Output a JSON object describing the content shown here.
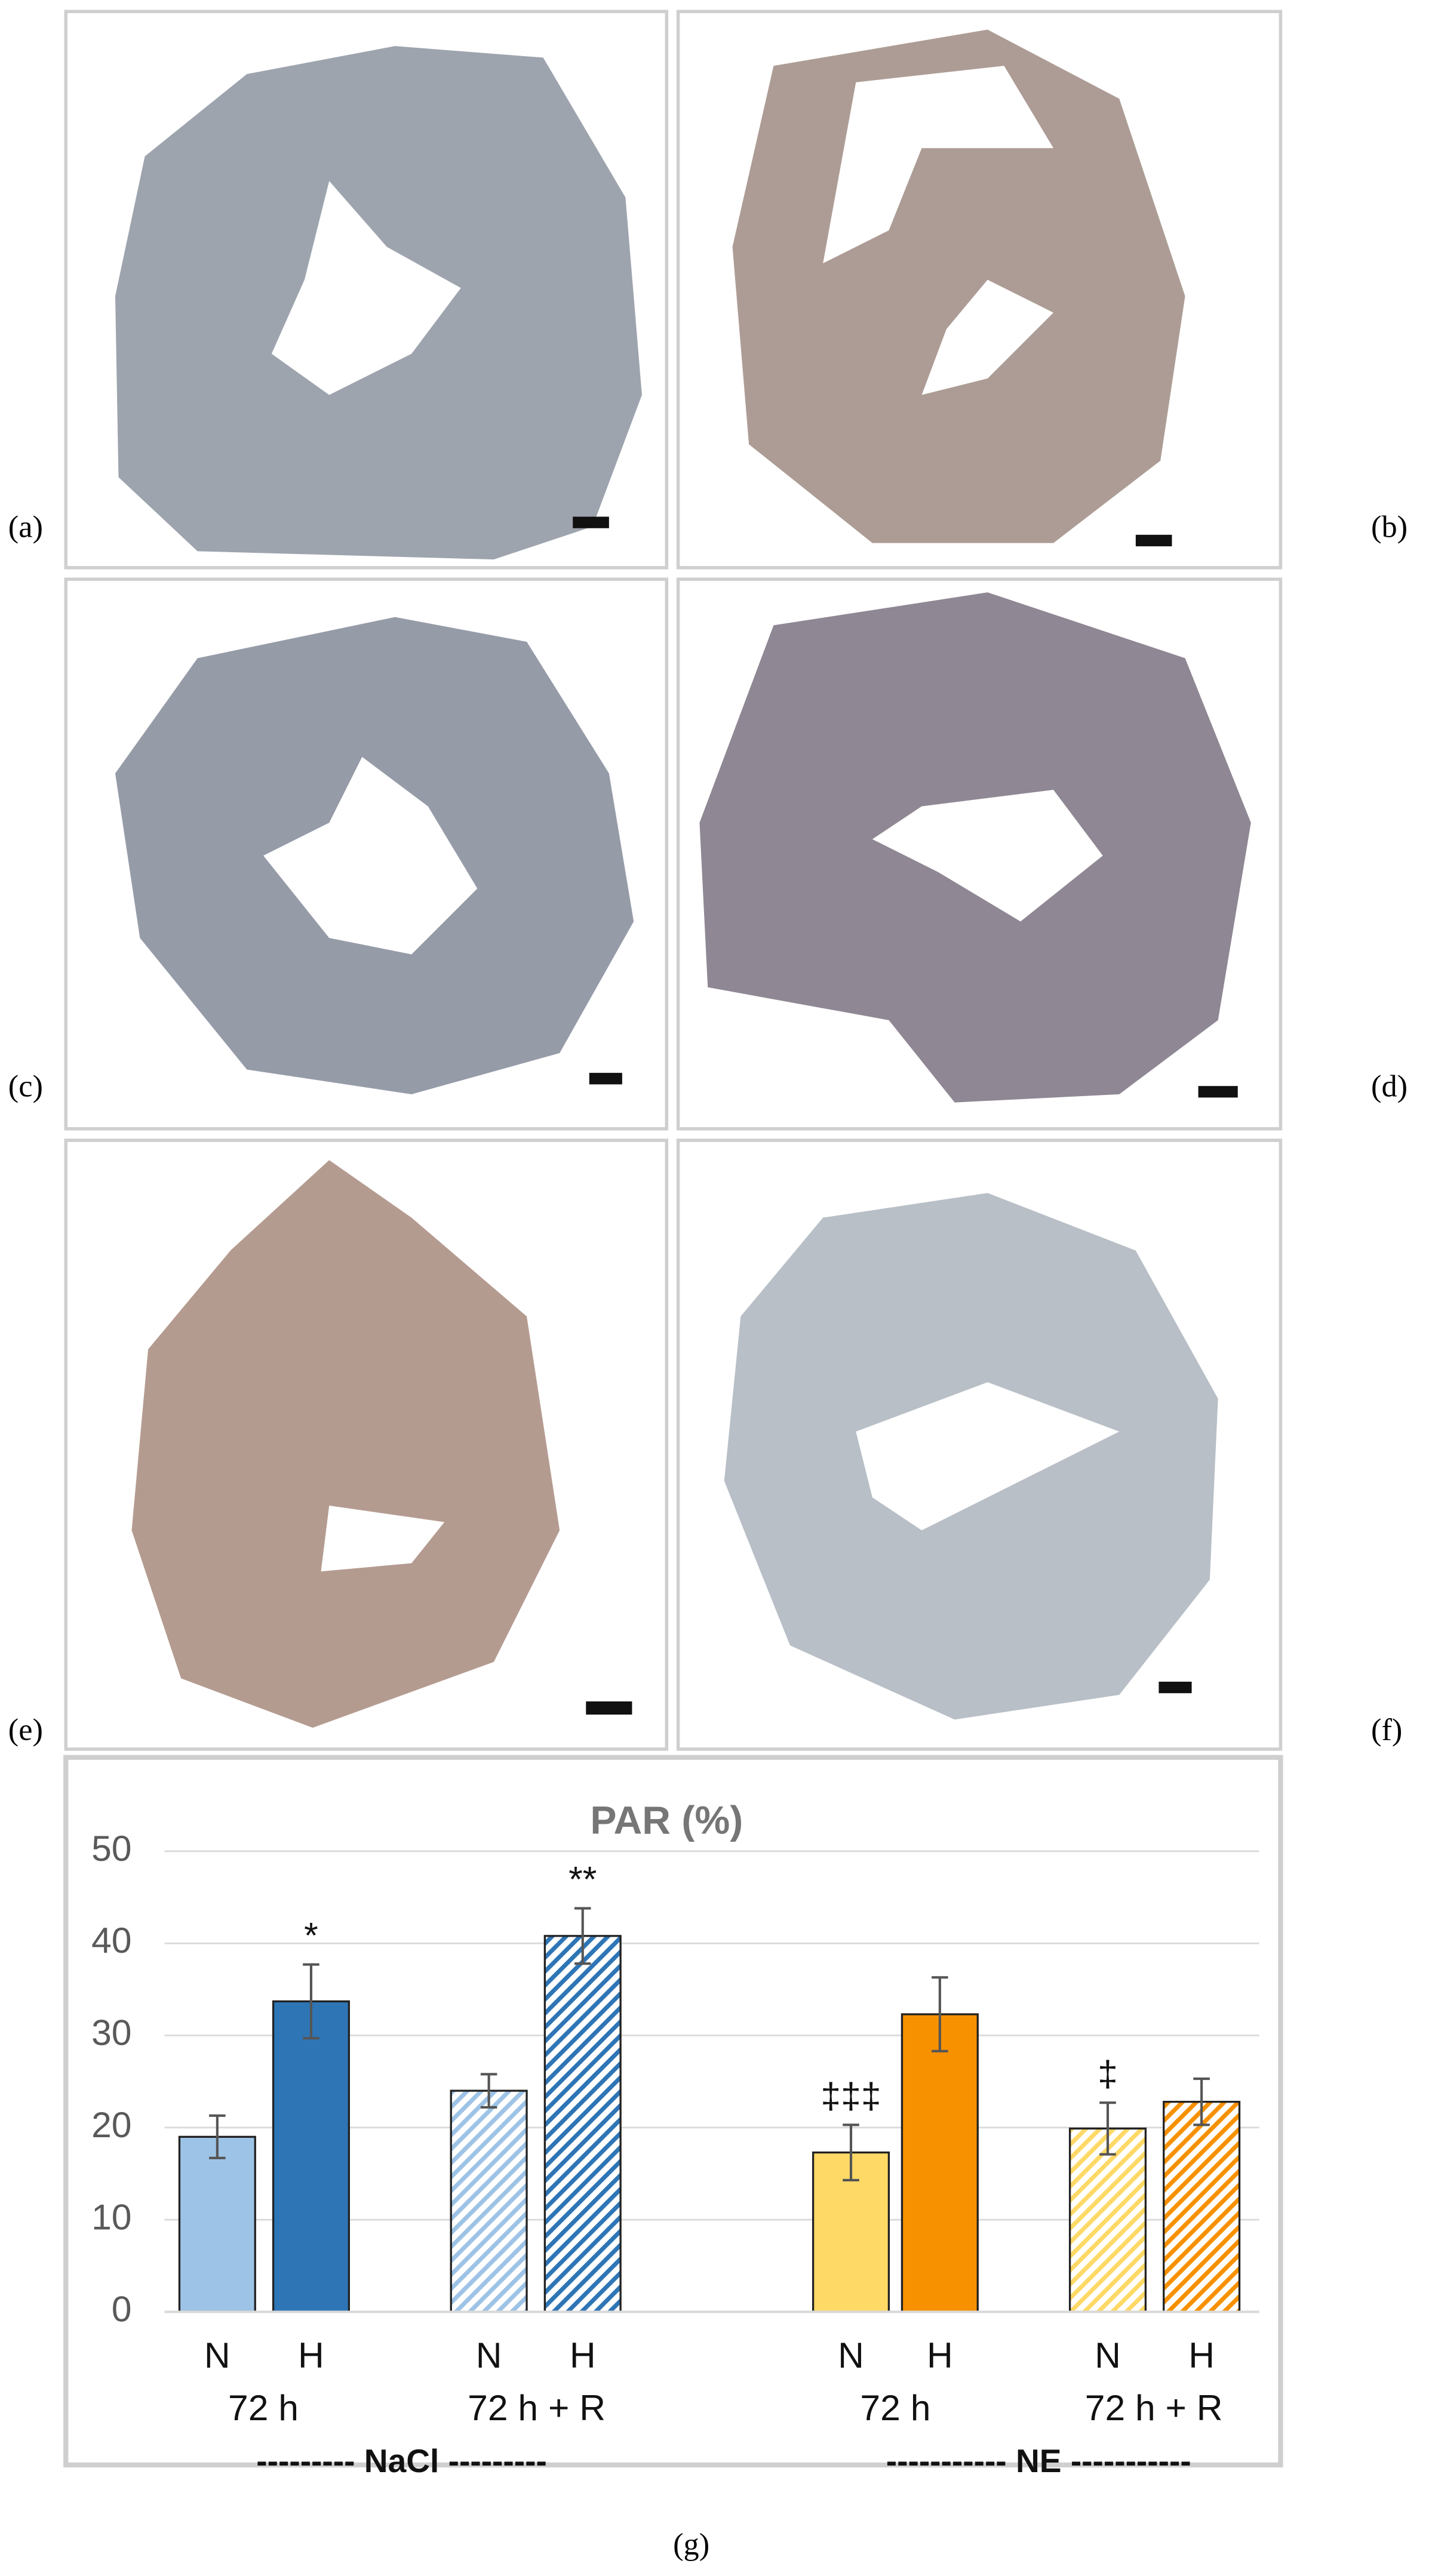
{
  "panel_labels": [
    "(a)",
    "(b)",
    "(c)",
    "(d)",
    "(e)",
    "(f)",
    "(g)"
  ],
  "chart_data": {
    "type": "bar",
    "title": "PAR (%)",
    "categories": [
      "N",
      "H",
      "N",
      "H",
      "N",
      "H",
      "N",
      "H"
    ],
    "values": [
      19,
      33.7,
      24,
      40.8,
      17.3,
      32.3,
      19.9,
      22.8
    ],
    "errors": [
      2.3,
      4,
      1.8,
      3,
      3,
      4,
      2.8,
      2.5
    ],
    "colors": [
      "#9dc3e6",
      "#2e75b6",
      "#9dc3e6",
      "#2e75b6",
      "#ffd966",
      "#f79100",
      "#ffd966",
      "#f79100"
    ],
    "hatched": [
      false,
      false,
      true,
      true,
      false,
      false,
      true,
      true
    ],
    "value_annotations": [
      null,
      "*",
      null,
      "**",
      "‡‡‡",
      null,
      "‡",
      null
    ],
    "group_labels": [
      "72 h",
      "72 h + R",
      "72 h",
      "72 h + R"
    ],
    "supergroup_labels": [
      "--------- NaCl ---------",
      "----------- NE -----------"
    ],
    "ylim": [
      0,
      50
    ],
    "yticks": [
      0,
      10,
      20,
      30,
      40,
      50
    ],
    "grid": true
  }
}
